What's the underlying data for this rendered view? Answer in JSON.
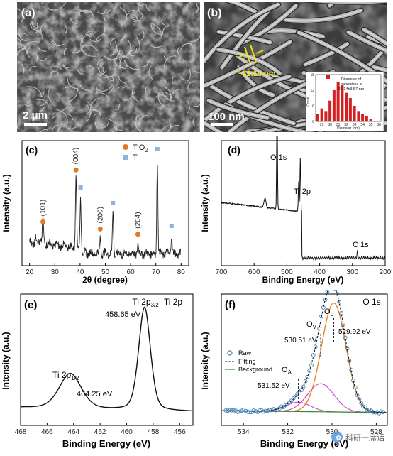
{
  "panels": {
    "a": {
      "label": "(a)",
      "scalebar": "2 μm"
    },
    "b": {
      "label": "(b)",
      "scalebar": "100 nm",
      "measure": "~32.14 nm",
      "inset": {
        "legend": [
          "Diameter of",
          "nanowires =",
          "32.14±3.57 nm"
        ],
        "xlabel": "Diameter (nm)",
        "ylabel": "Count",
        "yticks": [
          "0",
          "6",
          "12",
          "18"
        ],
        "xticks": [
          "29",
          "30",
          "31",
          "32",
          "33",
          "34",
          "35",
          "36"
        ]
      }
    },
    "c": {
      "label": "(c)",
      "xlabel": "2θ (degree)",
      "ylabel": "Intensity (a.u.)",
      "xticks": [
        "20",
        "30",
        "40",
        "50",
        "60",
        "70",
        "80"
      ],
      "legend": [
        {
          "name": "TiO",
          "sub": "2",
          "color": "#e07b22"
        },
        {
          "name": "Ti",
          "sub": "",
          "color": "#8fb3d9"
        }
      ],
      "peak_labels": [
        "(101)",
        "(004)",
        "(200)",
        "(204)"
      ]
    },
    "d": {
      "label": "(d)",
      "xlabel": "Binding Energy (eV)",
      "ylabel": "Intensity (a.u.)",
      "xticks": [
        "700",
        "600",
        "500",
        "400",
        "300",
        "200"
      ],
      "peak_labels": [
        "O 1s",
        "Ti 2p",
        "C 1s"
      ]
    },
    "e": {
      "label": "(e)",
      "corner": "Ti 2p",
      "xlabel": "Binding Energy (eV)",
      "ylabel": "Intensity (a.u.)",
      "xticks": [
        "468",
        "466",
        "464",
        "462",
        "460",
        "458",
        "456"
      ],
      "peak1": {
        "name": "Ti 2p",
        "sub": "3/2",
        "value": "458.65 eV"
      },
      "peak2": {
        "name": "Ti 2p",
        "sub": "1/2",
        "value": "464.25 eV"
      }
    },
    "f": {
      "label": "(f)",
      "corner": "O 1s",
      "xlabel": "Binding Energy (eV)",
      "ylabel": "Intensity (a.u.)",
      "xticks": [
        "534",
        "532",
        "530",
        "528"
      ],
      "legend": [
        "Raw",
        "Fitting",
        "Background"
      ],
      "peaks": [
        {
          "name": "O",
          "sub": "L",
          "value": "529.92 eV"
        },
        {
          "name": "O",
          "sub": "V",
          "value": "530.51 eV"
        },
        {
          "name": "O",
          "sub": "A",
          "value": "531.52 eV"
        }
      ],
      "watermark": "科研一席话"
    }
  },
  "colors": {
    "accent_yellow": "#f2e600",
    "bar_red": "#d42020",
    "tio2_orange": "#e07b22",
    "ti_blue": "#8fb3d9"
  },
  "chart_data": [
    {
      "type": "bar",
      "panel": "b-inset",
      "categories": [
        "28.5",
        "29",
        "29.5",
        "30",
        "30.5",
        "31",
        "31.5",
        "32",
        "32.5",
        "33",
        "33.5",
        "34",
        "34.5",
        "35"
      ],
      "values": [
        3,
        5,
        4,
        8,
        12,
        15,
        14,
        11,
        9,
        6,
        4,
        3,
        2,
        1
      ],
      "xlabel": "Diameter (nm)",
      "ylabel": "Count",
      "ylim": [
        0,
        18
      ]
    },
    {
      "type": "line",
      "panel": "c",
      "xlabel": "2θ (degree)",
      "ylabel": "Intensity (a.u.)",
      "xlim": [
        20,
        80
      ],
      "peaks": [
        {
          "x": 25.3,
          "y": 0.22,
          "label": "(101)",
          "phase": "TiO2"
        },
        {
          "x": 38.4,
          "y": 0.72,
          "label": "(004)",
          "phase": "TiO2"
        },
        {
          "x": 40.2,
          "y": 0.55,
          "phase": "Ti"
        },
        {
          "x": 48.0,
          "y": 0.15,
          "label": "(200)",
          "phase": "TiO2"
        },
        {
          "x": 53.0,
          "y": 0.4,
          "phase": "Ti"
        },
        {
          "x": 62.9,
          "y": 0.1,
          "label": "(204)",
          "phase": "TiO2"
        },
        {
          "x": 70.6,
          "y": 0.92,
          "phase": "Ti"
        },
        {
          "x": 76.2,
          "y": 0.18,
          "phase": "Ti"
        }
      ]
    },
    {
      "type": "line",
      "panel": "d",
      "xlabel": "Binding Energy (eV)",
      "ylabel": "Intensity (a.u.)",
      "xlim": [
        700,
        200
      ],
      "peaks": [
        {
          "x": 530,
          "y": 0.95,
          "label": "O 1s"
        },
        {
          "x": 459,
          "y": 0.62,
          "label": "Ti 2p"
        },
        {
          "x": 285,
          "y": 0.06,
          "label": "C 1s"
        }
      ]
    },
    {
      "type": "line",
      "panel": "e",
      "xlabel": "Binding Energy (eV)",
      "ylabel": "Intensity (a.u.)",
      "xlim": [
        468,
        455
      ],
      "peaks": [
        {
          "x": 458.65,
          "y": 1.0,
          "label": "Ti 2p3/2"
        },
        {
          "x": 464.25,
          "y": 0.35,
          "label": "Ti 2p1/2"
        }
      ]
    },
    {
      "type": "line",
      "panel": "f",
      "xlabel": "Binding Energy (eV)",
      "ylabel": "Intensity (a.u.)",
      "xlim": [
        535,
        527.5
      ],
      "series": [
        {
          "name": "Raw"
        },
        {
          "name": "Fitting"
        },
        {
          "name": "Background"
        }
      ],
      "peaks": [
        {
          "x": 529.92,
          "y": 1.0,
          "label": "OL"
        },
        {
          "x": 530.51,
          "y": 0.25,
          "label": "OV"
        },
        {
          "x": 531.52,
          "y": 0.08,
          "label": "OA"
        }
      ]
    }
  ]
}
